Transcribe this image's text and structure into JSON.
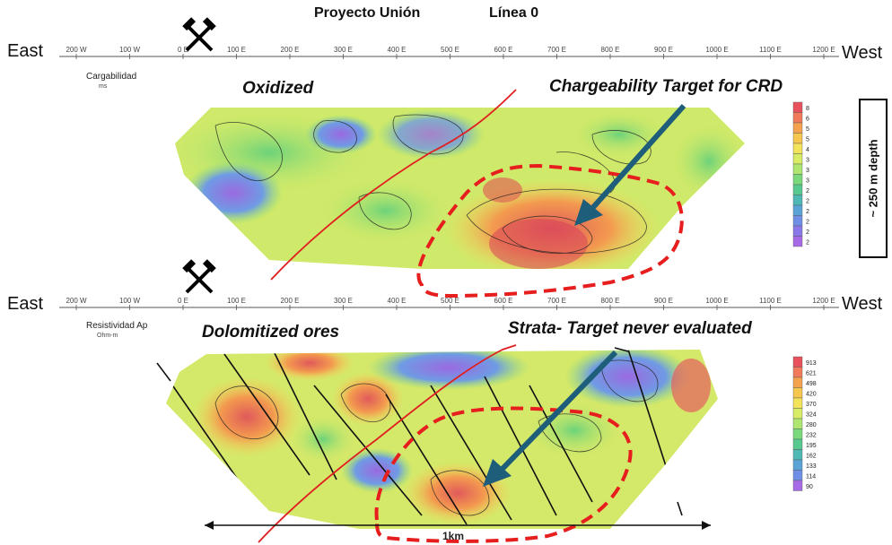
{
  "header": {
    "project": "Proyecto Unión",
    "line": "Línea 0"
  },
  "sides": {
    "left": "East",
    "right": "West"
  },
  "axis": {
    "ticks": [
      "200 W",
      "100 W",
      "0 E",
      "100 E",
      "200 E",
      "300 E",
      "400 E",
      "500 E",
      "600 E",
      "700 E",
      "800 E",
      "900 E",
      "1000 E",
      "1100 E",
      "1200 E"
    ]
  },
  "top_panel": {
    "title": "Cargabilidad",
    "unit": "ms",
    "annotation_left": "Oxidized",
    "annotation_right": "Chargeability Target for CRD",
    "legend_values": [
      "8",
      "6",
      "5",
      "5",
      "4",
      "3",
      "3",
      "3",
      "2",
      "2",
      "2",
      "2",
      "2",
      "2"
    ],
    "legend_colors": [
      "#e8505b",
      "#f07a5a",
      "#f5a24e",
      "#f6c74f",
      "#f3e35a",
      "#d9ec66",
      "#aee670",
      "#7ad97a",
      "#57c98f",
      "#4fb7b4",
      "#5aa3d6",
      "#6f8fe6",
      "#8b78e8",
      "#a66ae6"
    ]
  },
  "bottom_panel": {
    "title": "Resistividad Ap",
    "unit": "Ohm-m",
    "annotation_left": "Dolomitized ores",
    "annotation_right": "Strata- Target never evaluated",
    "legend_values": [
      "913",
      "621",
      "498",
      "420",
      "370",
      "324",
      "280",
      "232",
      "195",
      "162",
      "133",
      "114",
      "90"
    ],
    "legend_colors": [
      "#e8505b",
      "#f07a5a",
      "#f5a24e",
      "#f6c74f",
      "#f3e35a",
      "#d9ec66",
      "#aee670",
      "#7ad97a",
      "#57c98f",
      "#4fb7b4",
      "#5aa3d6",
      "#6f8fe6",
      "#a66ae6"
    ],
    "scale_label": "1km"
  },
  "depth_label": "~ 250 m depth",
  "icons": {
    "mine": "crossed-hammers-icon"
  }
}
